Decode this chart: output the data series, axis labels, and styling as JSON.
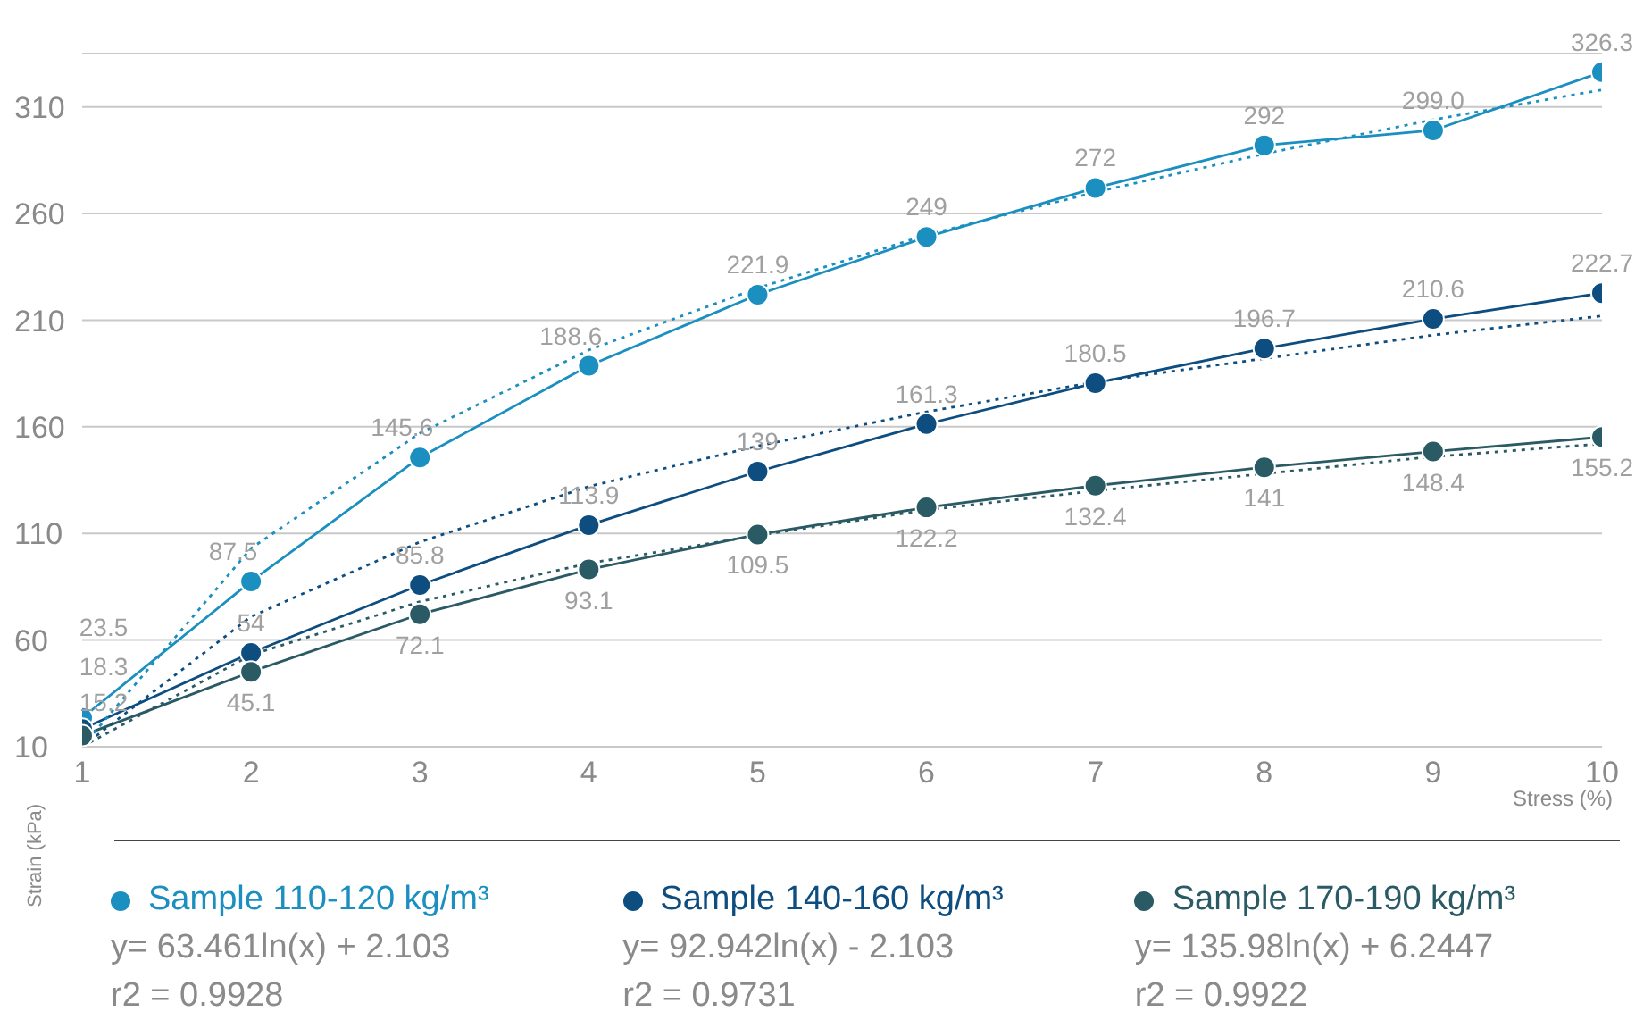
{
  "chart_data": {
    "type": "line",
    "xlabel": "Stress (%)",
    "ylabel": "Strain (kPa)",
    "x": [
      1,
      2,
      3,
      4,
      5,
      6,
      7,
      8,
      9,
      10
    ],
    "xlim": [
      1,
      10
    ],
    "xticks": [
      1,
      2,
      3,
      4,
      5,
      6,
      7,
      8,
      9,
      10
    ],
    "ylim": [
      10,
      335
    ],
    "yticks": [
      10,
      60,
      110,
      160,
      210,
      260,
      310
    ],
    "grid": "y",
    "legend": "bottom",
    "series": [
      {
        "name": "Sample 110-120 kg/m³",
        "color": "#1a8fc0",
        "marker": "circle",
        "line_style": "solid",
        "values": [
          23.5,
          87.5,
          145.6,
          188.6,
          221.9,
          249,
          272,
          292,
          299.0,
          326.3
        ],
        "value_labels": [
          "23.5",
          "87.5",
          "145.6",
          "188.6",
          "221.9",
          "249",
          "272",
          "292",
          "299.0",
          "326.3"
        ]
      },
      {
        "name": "Sample 140-160 kg/m³",
        "color": "#0d4d80",
        "marker": "circle",
        "line_style": "solid",
        "values": [
          18.3,
          54,
          85.8,
          113.9,
          139,
          161.3,
          180.5,
          196.7,
          210.6,
          222.7
        ],
        "value_labels": [
          "18.3",
          "54",
          "85.8",
          "113.9",
          "139",
          "161.3",
          "180.5",
          "196.7",
          "210.6",
          "222.7"
        ]
      },
      {
        "name": "Sample 170-190 kg/m³",
        "color": "#2a5a64",
        "marker": "circle",
        "line_style": "solid",
        "values": [
          15.2,
          45.1,
          72.1,
          93.1,
          109.5,
          122.2,
          132.4,
          141,
          148.4,
          155.2
        ],
        "value_labels": [
          "15.2",
          "45.1",
          "72.1",
          "93.1",
          "109.5",
          "122.2",
          "132.4",
          "141",
          "148.4",
          "155.2"
        ]
      },
      {
        "type": "line",
        "color": "#1a8fc0",
        "marker": "none",
        "line_style": "dotted",
        "values": [
          10,
          103,
          157,
          196,
          225,
          250,
          270,
          288,
          304,
          318
        ]
      },
      {
        "type": "line",
        "color": "#0d4d80",
        "marker": "none",
        "line_style": "dotted",
        "values": [
          10,
          71,
          106,
          132,
          151,
          167,
          181,
          192,
          203,
          212
        ]
      },
      {
        "type": "line",
        "color": "#2a5a64",
        "marker": "none",
        "line_style": "dotted",
        "values": [
          10,
          53,
          78,
          96,
          109,
          121,
          130,
          138,
          146,
          152
        ]
      }
    ],
    "annotations": [
      "y= 63.461ln(x) + 2.103\nr2 = 0.9928",
      "y= 92.942ln(x) - 2.103\nr2 = 0.9731",
      "y= 135.98ln(x) + 6.2447\nr2 = 0.9922"
    ]
  }
}
